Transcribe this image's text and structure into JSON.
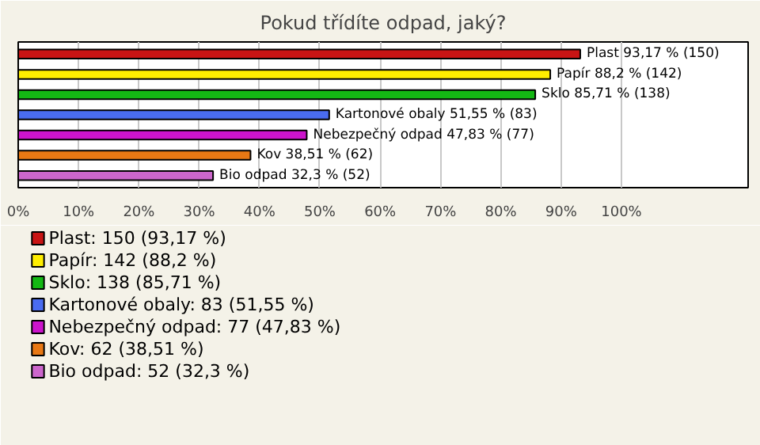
{
  "chart_data": {
    "type": "bar",
    "orientation": "horizontal",
    "title": "Pokud třídíte odpad, jaký?",
    "categories": [
      null,
      null,
      null,
      null,
      null,
      null,
      null
    ],
    "series": [
      {
        "name": "Plast: 150 (93,17 %)",
        "color": "#c81414",
        "values": [
          93.17,
          null,
          null,
          null,
          null,
          null,
          null
        ],
        "value_labels": [
          "Plast 93,17 % (150)",
          null,
          null,
          null,
          null,
          null,
          null
        ]
      },
      {
        "name": "Papír: 142 (88,2 %)",
        "color": "#ffee00",
        "values": [
          null,
          88.2,
          null,
          null,
          null,
          null,
          null
        ],
        "value_labels": [
          null,
          "Papír 88,2 % (142)",
          null,
          null,
          null,
          null,
          null
        ]
      },
      {
        "name": "Sklo: 138 (85,71 %)",
        "color": "#14b814",
        "values": [
          null,
          null,
          85.71,
          null,
          null,
          null,
          null
        ],
        "value_labels": [
          null,
          null,
          "Sklo 85,71 % (138)",
          null,
          null,
          null,
          null
        ]
      },
      {
        "name": "Kartonové obaly: 83 (51,55 %)",
        "color": "#4a6cf0",
        "values": [
          null,
          null,
          null,
          51.55,
          null,
          null,
          null
        ],
        "value_labels": [
          null,
          null,
          null,
          "Kartonové obaly 51,55 % (83)",
          null,
          null,
          null
        ]
      },
      {
        "name": "Nebezpečný odpad: 77 (47,83 %)",
        "color": "#cc14cc",
        "values": [
          null,
          null,
          null,
          null,
          47.83,
          null,
          null
        ],
        "value_labels": [
          null,
          null,
          null,
          null,
          "Nebezpečný odpad 47,83 % (77)",
          null,
          null
        ]
      },
      {
        "name": "Kov: 62 (38,51 %)",
        "color": "#e87814",
        "values": [
          null,
          null,
          null,
          null,
          null,
          38.51,
          null
        ],
        "value_labels": [
          null,
          null,
          null,
          null,
          null,
          "Kov 38,51 % (62)",
          null
        ]
      },
      {
        "name": "Bio odpad: 52 (32,3 %)",
        "color": "#cc66cc",
        "values": [
          null,
          null,
          null,
          null,
          null,
          null,
          32.3
        ],
        "value_labels": [
          null,
          null,
          null,
          null,
          null,
          null,
          "Bio odpad 32,3 % (52)"
        ]
      }
    ],
    "xlim": [
      0,
      121
    ],
    "xticks": [
      {
        "value": 0,
        "label": "0%"
      },
      {
        "value": 10,
        "label": "10%"
      },
      {
        "value": 20,
        "label": "20%"
      },
      {
        "value": 30,
        "label": "30%"
      },
      {
        "value": 40,
        "label": "40%"
      },
      {
        "value": 50,
        "label": "50%"
      },
      {
        "value": 60,
        "label": "60%"
      },
      {
        "value": 70,
        "label": "70%"
      },
      {
        "value": 80,
        "label": "80%"
      },
      {
        "value": 90,
        "label": "90%"
      },
      {
        "value": 100,
        "label": "100%"
      }
    ],
    "grid": "x",
    "legend": "bottom"
  }
}
